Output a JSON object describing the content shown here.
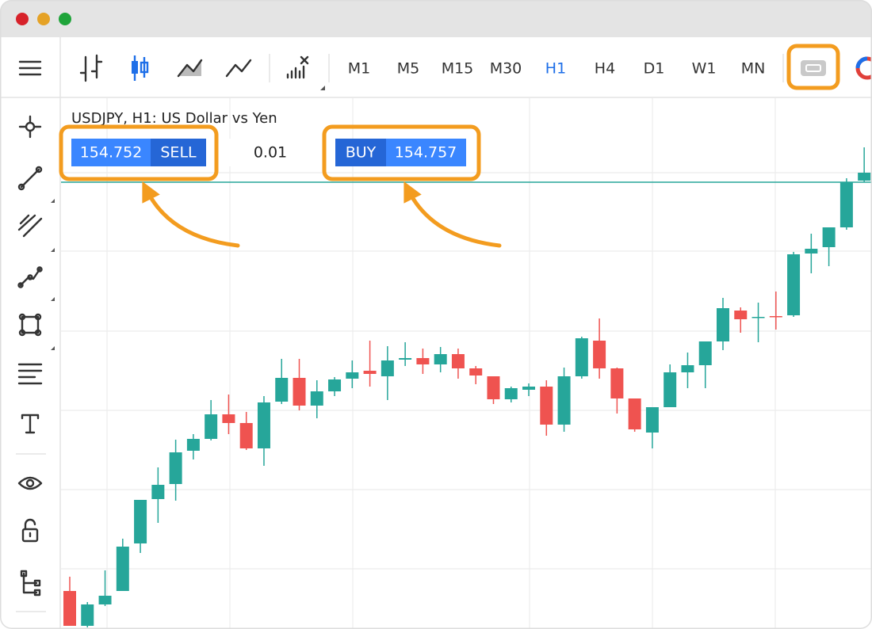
{
  "toolbar": {
    "timeframes": [
      "M1",
      "M5",
      "M15",
      "M30",
      "H1",
      "H4",
      "D1",
      "W1",
      "MN"
    ],
    "active_timeframe": 4
  },
  "chart": {
    "title": "USDJPY, H1: US Dollar vs Yen",
    "sell": {
      "price": 154.752,
      "label": "SELL"
    },
    "volume": 0.01,
    "buy": {
      "label": "BUY",
      "price": 154.757
    },
    "up_color": "#26a69a",
    "down_color": "#ef5350",
    "candles": [
      [
        154.236,
        154.254,
        154.192,
        154.192
      ],
      [
        154.192,
        154.222,
        154.19,
        154.219
      ],
      [
        154.219,
        154.262,
        154.217,
        154.23
      ],
      [
        154.236,
        154.302,
        154.236,
        154.292
      ],
      [
        154.296,
        154.351,
        154.284,
        154.351
      ],
      [
        154.352,
        154.392,
        154.322,
        154.37
      ],
      [
        154.371,
        154.427,
        154.35,
        154.411
      ],
      [
        154.413,
        154.434,
        154.402,
        154.428
      ],
      [
        154.428,
        154.477,
        154.426,
        154.459
      ],
      [
        154.459,
        154.484,
        154.434,
        154.448
      ],
      [
        154.448,
        154.462,
        154.414,
        154.416
      ],
      [
        154.416,
        154.482,
        154.394,
        154.474
      ],
      [
        154.475,
        154.529,
        154.472,
        154.505
      ],
      [
        154.505,
        154.529,
        154.464,
        154.47
      ],
      [
        154.47,
        154.502,
        154.454,
        154.488
      ],
      [
        154.488,
        154.506,
        154.482,
        154.503
      ],
      [
        154.504,
        154.527,
        154.492,
        154.512
      ],
      [
        154.514,
        154.552,
        154.494,
        154.51
      ],
      [
        154.507,
        154.545,
        154.477,
        154.527
      ],
      [
        154.528,
        154.55,
        154.52,
        154.53
      ],
      [
        154.53,
        154.542,
        154.51,
        154.522
      ],
      [
        154.522,
        154.544,
        154.512,
        154.535
      ],
      [
        154.535,
        154.542,
        154.504,
        154.517
      ],
      [
        154.517,
        154.52,
        154.497,
        154.508
      ],
      [
        154.507,
        154.507,
        154.472,
        154.478
      ],
      [
        154.478,
        154.494,
        154.474,
        154.492
      ],
      [
        154.49,
        154.498,
        154.482,
        154.494
      ],
      [
        154.494,
        154.502,
        154.432,
        154.446
      ],
      [
        154.446,
        154.518,
        154.437,
        154.507
      ],
      [
        154.507,
        154.557,
        154.504,
        154.555
      ],
      [
        154.552,
        154.58,
        154.504,
        154.517
      ],
      [
        154.517,
        154.518,
        154.46,
        154.479
      ],
      [
        154.479,
        154.479,
        154.437,
        154.44
      ],
      [
        154.436,
        154.468,
        154.416,
        154.468
      ],
      [
        154.468,
        154.522,
        154.468,
        154.512
      ],
      [
        154.512,
        154.537,
        154.492,
        154.521
      ],
      [
        154.521,
        154.551,
        154.492,
        154.551
      ],
      [
        154.551,
        154.606,
        154.54,
        154.593
      ],
      [
        154.59,
        154.594,
        154.562,
        154.579
      ],
      [
        154.581,
        154.6,
        154.55,
        154.582
      ],
      [
        154.583,
        154.614,
        154.566,
        154.582
      ],
      [
        154.584,
        154.664,
        154.582,
        154.661
      ],
      [
        154.662,
        154.687,
        154.637,
        154.668
      ],
      [
        154.67,
        154.695,
        154.646,
        154.695
      ],
      [
        154.695,
        154.757,
        154.692,
        154.752
      ],
      [
        154.754,
        154.796,
        154.752,
        154.764
      ]
    ]
  }
}
